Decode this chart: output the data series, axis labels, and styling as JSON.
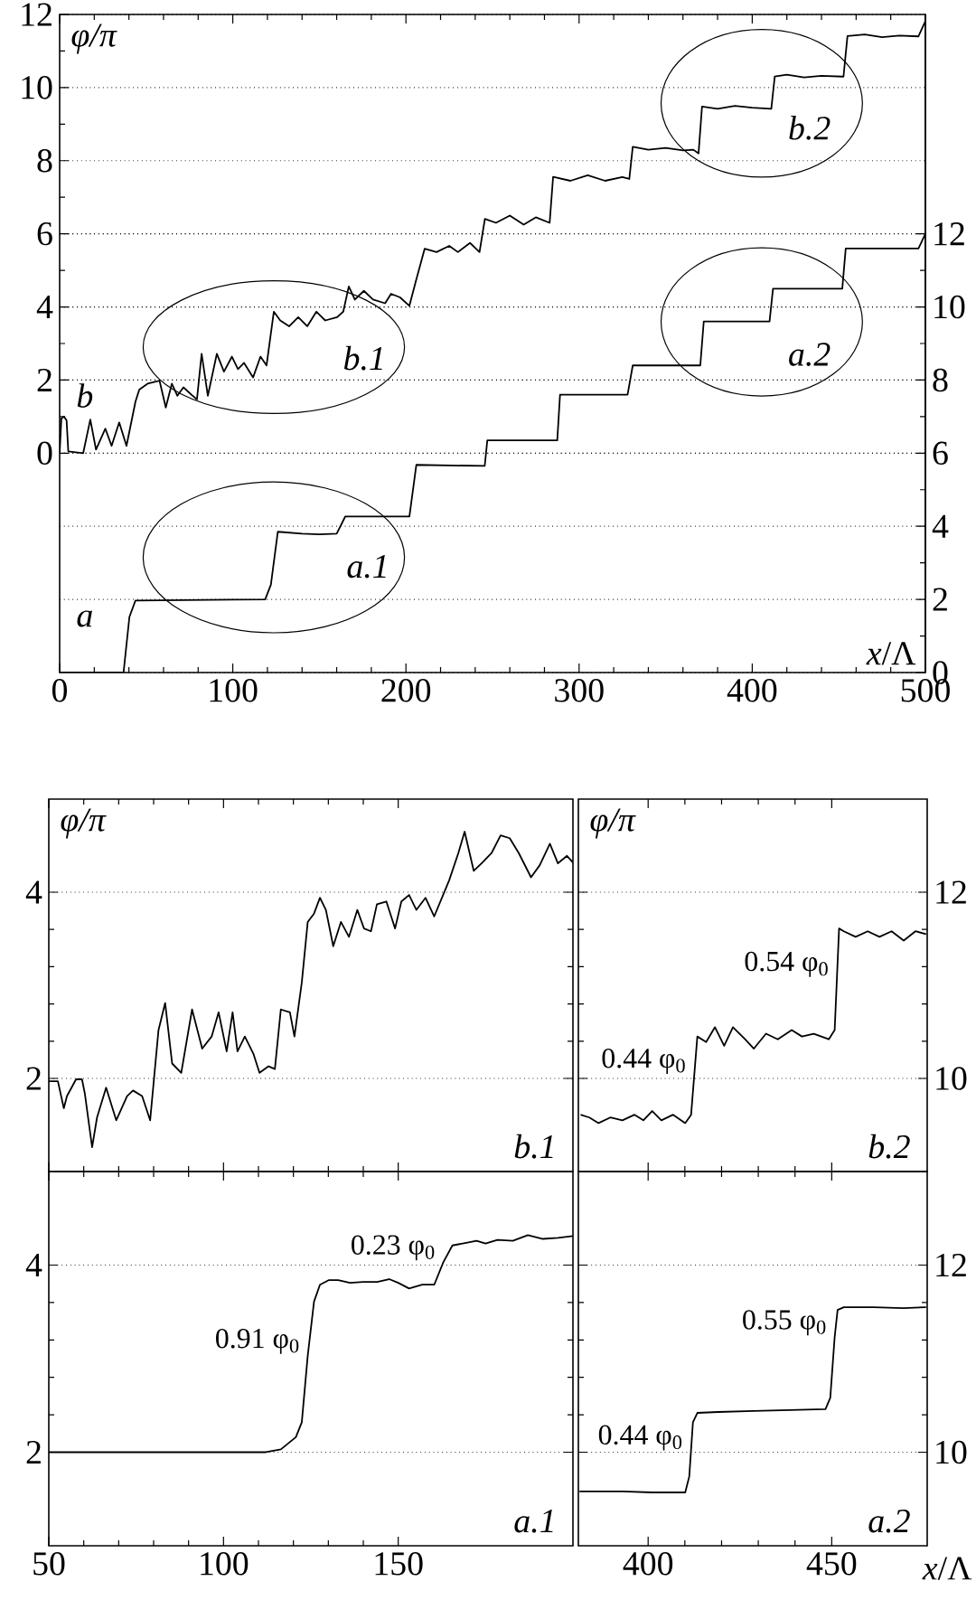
{
  "chart_data": [
    {
      "type": "line",
      "xlim": [
        0,
        500
      ],
      "xticks": [
        0,
        100,
        200,
        300,
        400,
        500
      ],
      "ylim": [
        -6,
        12
      ],
      "yticks": [
        0,
        2,
        4,
        6,
        8,
        10,
        12
      ],
      "y2lim": [
        0,
        18
      ],
      "y2ticks": [
        0,
        2,
        4,
        6,
        8,
        10,
        12
      ],
      "xlabel": "*x*/Λ",
      "ylabel": "φ/π",
      "grid": "y",
      "annotations": [
        "b.1",
        "a.1",
        "b.2",
        "a.2"
      ],
      "series": [
        {
          "name": "b",
          "color": "#000000",
          "x": [
            0,
            1,
            2.5,
            4,
            5,
            13.6,
            17.7,
            21,
            26.4,
            30,
            34.4,
            38.6,
            43.8,
            46,
            50.8,
            57.7,
            61.3,
            64.8,
            68,
            71.5,
            76.8,
            79.3,
            82,
            85.6,
            90.8,
            94.9,
            99.5,
            103,
            106.5,
            111.7,
            116,
            119.5,
            123.7,
            127.4,
            132.6,
            137.8,
            143,
            148.3,
            153.4,
            160.3,
            163.8,
            167,
            170.5,
            175.7,
            181,
            188,
            191.4,
            196.6,
            202,
            205.7,
            210.8,
            217.7,
            225,
            230,
            237,
            242.5,
            245.6,
            252,
            260,
            268,
            275,
            283,
            285,
            295,
            305,
            315,
            325,
            329,
            331,
            340,
            350,
            360,
            366,
            369,
            371,
            380,
            390,
            400,
            411,
            413,
            420,
            430,
            440,
            452.7,
            455,
            465,
            475,
            485,
            496,
            500
          ],
          "values": [
            0,
            0.95,
            1.0,
            0.9,
            0.05,
            0,
            0.92,
            0.1,
            0.67,
            0.2,
            0.84,
            0.2,
            1.41,
            1.74,
            1.9,
            1.98,
            1.25,
            1.9,
            1.57,
            1.8,
            1.57,
            1.47,
            2.72,
            1.57,
            2.72,
            2.23,
            2.64,
            2.3,
            2.47,
            2.07,
            2.64,
            2.4,
            3.87,
            3.63,
            3.47,
            3.72,
            3.47,
            3.87,
            3.63,
            3.72,
            3.87,
            4.56,
            4.2,
            4.44,
            4.2,
            4.1,
            4.36,
            4.26,
            4.03,
            4.7,
            5.59,
            5.5,
            5.67,
            5.5,
            5.75,
            5.5,
            6.41,
            6.3,
            6.5,
            6.25,
            6.45,
            6.3,
            7.56,
            7.45,
            7.6,
            7.45,
            7.55,
            7.5,
            8.38,
            8.3,
            8.35,
            8.28,
            8.3,
            8.2,
            9.48,
            9.42,
            9.5,
            9.45,
            9.42,
            10.3,
            10.35,
            10.28,
            10.32,
            10.3,
            11.41,
            11.45,
            11.38,
            11.42,
            11.4,
            11.82
          ]
        },
        {
          "name": "a",
          "color": "#000000",
          "axis": "y2",
          "x": [
            0,
            36.9,
            40.3,
            43.8,
            118.7,
            122,
            126,
            140,
            150,
            160,
            165,
            202,
            206,
            245.5,
            247,
            287.4,
            289,
            328,
            331,
            370,
            372,
            410,
            412,
            452,
            454,
            496,
            500
          ],
          "values": [
            0,
            0,
            1.52,
            1.97,
            2,
            2.4,
            3.85,
            3.8,
            3.78,
            3.8,
            4.27,
            4.27,
            5.68,
            5.65,
            6.35,
            6.35,
            7.6,
            7.6,
            8.4,
            8.4,
            9.6,
            9.6,
            10.5,
            10.5,
            11.6,
            11.6,
            12
          ]
        }
      ]
    },
    {
      "type": "line",
      "xlim": [
        50,
        200
      ],
      "xticks": [
        50,
        100,
        150
      ],
      "ylim": [
        1,
        5
      ],
      "yticks": [
        2,
        4
      ],
      "ylabel": "φ/π",
      "grid": "y",
      "tick_labels": "y",
      "annotations": [
        "b.1"
      ],
      "series": [
        {
          "color": "#000000",
          "x": [
            50,
            52.6,
            54.3,
            55.2,
            57.8,
            59.5,
            60.3,
            62.4,
            63.8,
            66.4,
            69.3,
            72.4,
            74.1,
            76.7,
            79,
            81.4,
            83.3,
            85.3,
            87.9,
            91,
            93.9,
            96.6,
            98.6,
            100.9,
            102.6,
            104,
            106.1,
            108.6,
            110.3,
            112.9,
            114.7,
            116.4,
            119,
            120.3,
            122.4,
            124.1,
            125.9,
            127.6,
            129.3,
            131.4,
            133.6,
            135.9,
            138.3,
            140.2,
            142.2,
            143.9,
            146.6,
            149.1,
            150.9,
            153.1,
            155.2,
            157.8,
            160.3,
            164.6,
            167.2,
            169,
            171.6,
            174.1,
            176.7,
            179.3,
            181.9,
            184.5,
            188,
            190.5,
            193.4,
            195.7,
            198.3,
            200
          ],
          "values": [
            1.97,
            1.97,
            1.68,
            1.81,
            1.99,
            1.99,
            1.84,
            1.26,
            1.58,
            1.9,
            1.55,
            1.81,
            1.87,
            1.81,
            1.55,
            2.52,
            2.81,
            2.16,
            2.06,
            2.74,
            2.32,
            2.45,
            2.71,
            2.29,
            2.71,
            2.29,
            2.45,
            2.26,
            2.06,
            2.13,
            2.1,
            2.74,
            2.71,
            2.45,
            3.03,
            3.68,
            3.77,
            3.94,
            3.81,
            3.42,
            3.68,
            3.52,
            3.81,
            3.61,
            3.58,
            3.87,
            3.9,
            3.61,
            3.9,
            3.97,
            3.81,
            3.94,
            3.74,
            4.13,
            4.42,
            4.65,
            4.23,
            4.32,
            4.42,
            4.61,
            4.58,
            4.42,
            4.16,
            4.29,
            4.52,
            4.31,
            4.39,
            4.32
          ]
        }
      ]
    },
    {
      "type": "line",
      "xlim": [
        381,
        476
      ],
      "xticks": [
        400,
        450
      ],
      "ylim": [
        9,
        13
      ],
      "yticks": [
        10,
        12
      ],
      "ylabel": "φ/π",
      "grid": "y",
      "tick_labels": "y",
      "annotations": [
        {
          "text": "0.44 φ$_{0}$",
          "x": 412.5,
          "y": 10.03
        },
        {
          "text": "0.54 φ$_{0}$",
          "x": 451.4,
          "y": 11.07
        },
        "b.2"
      ],
      "series": [
        {
          "color": "#000000",
          "x": [
            381.6,
            384,
            386.5,
            389.7,
            393,
            396.3,
            398.7,
            401.1,
            403.6,
            406.8,
            410.1,
            411.7,
            413.4,
            415.8,
            418.2,
            420.7,
            423.1,
            426.4,
            428.8,
            432.1,
            435.3,
            439.1,
            441.9,
            445.1,
            449.2,
            450.8,
            452,
            453.3,
            456.5,
            459.8,
            463,
            466.3,
            469.6,
            472.8,
            475.7
          ],
          "values": [
            9.61,
            9.58,
            9.52,
            9.58,
            9.55,
            9.61,
            9.55,
            9.65,
            9.55,
            9.61,
            9.52,
            9.61,
            10.45,
            10.39,
            10.55,
            10.35,
            10.55,
            10.42,
            10.32,
            10.48,
            10.42,
            10.52,
            10.45,
            10.48,
            10.42,
            10.52,
            11.61,
            11.58,
            11.52,
            11.58,
            11.52,
            11.58,
            11.48,
            11.58,
            11.55
          ]
        }
      ]
    },
    {
      "type": "line",
      "xlim": [
        50,
        200
      ],
      "xticks": [
        50,
        100,
        150
      ],
      "ylim": [
        1,
        5
      ],
      "yticks": [
        2,
        4
      ],
      "grid": "y",
      "annotations": [
        {
          "text": "0.91 φ$_{0}$",
          "x": 124.1,
          "y": 3.03
        },
        {
          "text": "0.23 φ$_{0}$",
          "x": 162.9,
          "y": 4.03
        },
        "a.1"
      ],
      "series": [
        {
          "color": "#000000",
          "x": [
            50,
            112.1,
            116.4,
            120.7,
            122.4,
            124.1,
            125.9,
            127.6,
            130.2,
            132.8,
            136.2,
            140,
            144,
            147.4,
            150,
            153.1,
            156.9,
            160.3,
            162.9,
            165.5,
            169.8,
            172.4,
            175,
            178.4,
            182.8,
            187.1,
            191.4,
            195.7,
            200
          ],
          "values": [
            2,
            2,
            2.03,
            2.16,
            2.32,
            3.03,
            3.61,
            3.79,
            3.84,
            3.84,
            3.81,
            3.82,
            3.82,
            3.85,
            3.81,
            3.75,
            3.79,
            3.79,
            4.03,
            4.21,
            4.24,
            4.26,
            4.23,
            4.27,
            4.26,
            4.32,
            4.28,
            4.29,
            4.31
          ]
        }
      ]
    },
    {
      "type": "line",
      "xlim": [
        381,
        476
      ],
      "xticks": [
        400,
        450
      ],
      "ylim": [
        9,
        13
      ],
      "yticks": [
        10,
        12
      ],
      "xlabel": "*x*/Λ",
      "grid": "y",
      "annotations": [
        {
          "text": "0.44 φ$_{0}$",
          "x": 411.6,
          "y": 10.0
        },
        {
          "text": "0.55 φ$_{0}$",
          "x": 450.8,
          "y": 11.23
        },
        "a.2"
      ],
      "series": [
        {
          "color": "#000000",
          "x": [
            381.3,
            393,
            401.1,
            410.1,
            411.2,
            412.2,
            413.4,
            419.1,
            428.8,
            438.6,
            448.3,
            449.6,
            450.8,
            451.6,
            453.3,
            461.4,
            469.5,
            475.7
          ],
          "values": [
            9.58,
            9.58,
            9.57,
            9.57,
            9.74,
            10.32,
            10.42,
            10.43,
            10.44,
            10.45,
            10.46,
            10.58,
            11.23,
            11.52,
            11.55,
            11.55,
            11.54,
            11.55
          ]
        }
      ]
    }
  ]
}
